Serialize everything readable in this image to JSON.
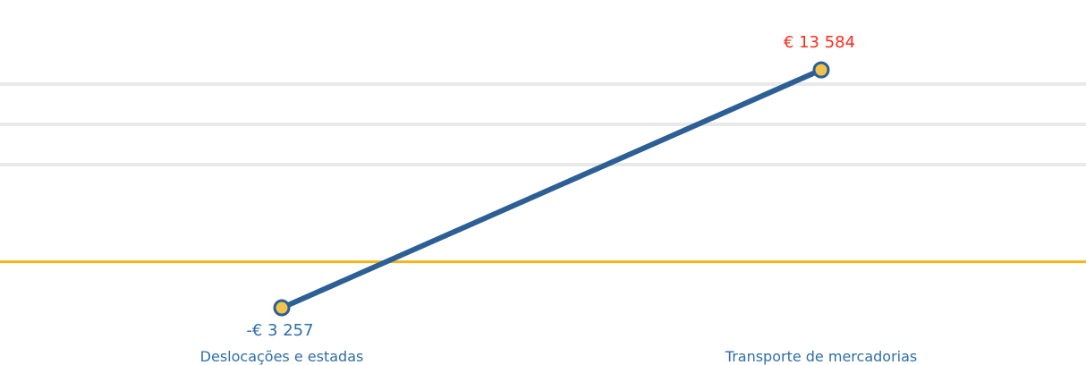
{
  "chart_data": {
    "type": "line",
    "categories": [
      "Deslocações e estadas",
      "Transporte de mercadorias"
    ],
    "series": [
      {
        "values": [
          -3257,
          13584
        ],
        "labels": [
          "-€ 3 257",
          "€ 13 584"
        ],
        "color": "#2c5f95",
        "marker_color": "#f0c34c",
        "label_colors": [
          "#2f6ea6",
          "#ff2a1a"
        ]
      }
    ],
    "ylim": [
      -6800,
      16000
    ],
    "baseline_value": 0,
    "baseline_color": "#f2b619",
    "title": "",
    "xlabel": "",
    "ylabel": "",
    "legend": "none",
    "grid": false
  }
}
